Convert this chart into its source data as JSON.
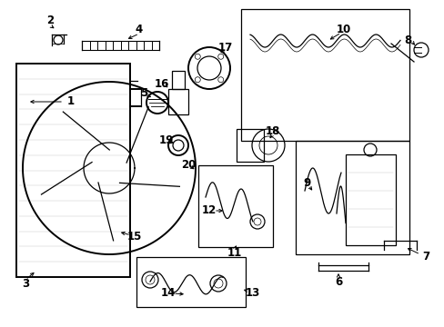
{
  "bg_color": "#ffffff",
  "line_color": "#000000",
  "light_gray": "#cccccc",
  "fig_width": 4.89,
  "fig_height": 3.6,
  "dpi": 100
}
